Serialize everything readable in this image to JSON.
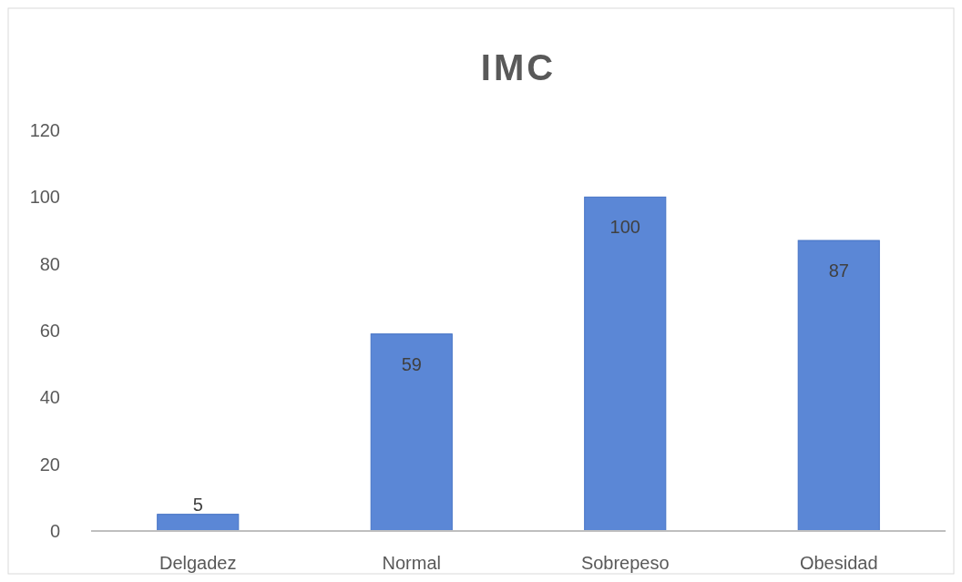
{
  "chart_data": {
    "type": "bar",
    "title": "IMC",
    "categories": [
      "Delgadez",
      "Normal",
      "Sobrepeso",
      "Obesidad"
    ],
    "values": [
      5,
      59,
      100,
      87
    ],
    "color": "#5b87d6",
    "ylim": [
      0,
      120
    ],
    "yticks": [
      0,
      20,
      40,
      60,
      80,
      100,
      120
    ],
    "grid": false,
    "data_labels": true
  }
}
